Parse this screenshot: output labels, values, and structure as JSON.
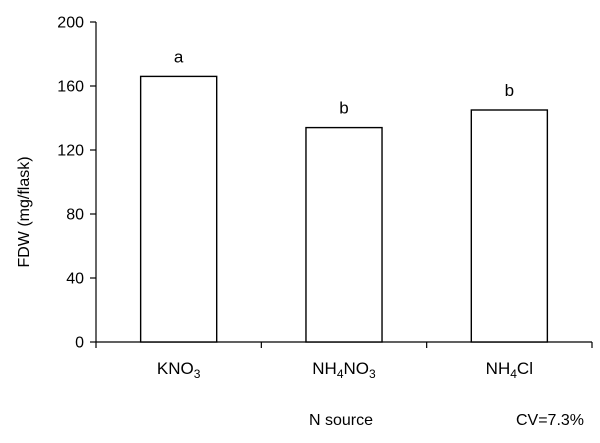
{
  "chart_data": {
    "type": "bar",
    "categories": [
      {
        "base": "KNO",
        "sub": "3",
        "tail": ""
      },
      {
        "base": "NH",
        "sub": "4",
        "tail": "NO",
        "sub2": "3"
      },
      {
        "base": "NH",
        "sub": "4",
        "tail": "Cl"
      }
    ],
    "values": [
      166,
      134,
      145
    ],
    "significance_letters": [
      "a",
      "b",
      "b"
    ],
    "ylabel": "FDW (mg/flask)",
    "xlabel": "N source",
    "ylim": [
      0,
      200
    ],
    "yticks": [
      0,
      40,
      80,
      120,
      160,
      200
    ],
    "annotation": "CV=7.3%",
    "grid": false,
    "bar_fill": "#ffffff",
    "bar_stroke": "#000000"
  }
}
